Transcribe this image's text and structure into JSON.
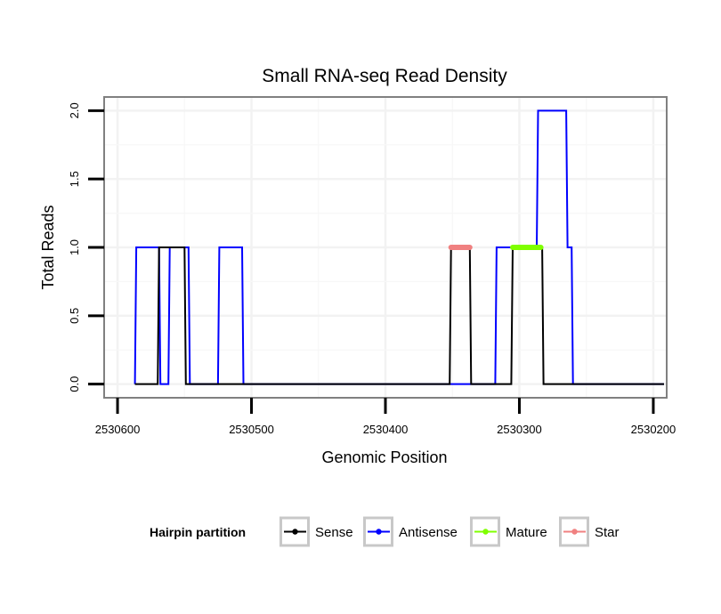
{
  "chart_data": {
    "type": "line",
    "title": "Small RNA-seq Read Density",
    "xlabel": "Genomic Position",
    "ylabel": "Total Reads",
    "xlim": [
      2530610,
      2530190
    ],
    "x_reversed": true,
    "ylim": [
      -0.1,
      2.1
    ],
    "x_ticks": [
      2530600,
      2530500,
      2530400,
      2530300,
      2530200
    ],
    "x_tick_labels": [
      "2530600",
      "2530500",
      "2530400",
      "2530300",
      "2530200"
    ],
    "y_ticks": [
      0.0,
      0.5,
      1.0,
      1.5,
      2.0
    ],
    "y_tick_labels": [
      "0.0",
      "0.5",
      "1.0",
      "1.5",
      "2.0"
    ],
    "grid": true,
    "legend": {
      "title": "Hairpin partition",
      "placement": "bottom",
      "entries": [
        {
          "name": "Sense",
          "color": "#000000"
        },
        {
          "name": "Antisense",
          "color": "#0000FF"
        },
        {
          "name": "Mature",
          "color": "#7FFF00"
        },
        {
          "name": "Star",
          "color": "#F08080"
        }
      ]
    },
    "series": [
      {
        "name": "Antisense",
        "color": "#0000FF",
        "points": [
          [
            2530587,
            0
          ],
          [
            2530586,
            1
          ],
          [
            2530569,
            1
          ],
          [
            2530568,
            0
          ],
          [
            2530562,
            0
          ],
          [
            2530561,
            1
          ],
          [
            2530547,
            1
          ],
          [
            2530546,
            0
          ],
          [
            2530525,
            0
          ],
          [
            2530524,
            1
          ],
          [
            2530507,
            1
          ],
          [
            2530506,
            0
          ],
          [
            2530318,
            0
          ],
          [
            2530317,
            1
          ],
          [
            2530287,
            1
          ],
          [
            2530286,
            2
          ],
          [
            2530265,
            2
          ],
          [
            2530264,
            1
          ],
          [
            2530261,
            1
          ],
          [
            2530260,
            0
          ],
          [
            2530192,
            0
          ]
        ]
      },
      {
        "name": "Sense",
        "color": "#000000",
        "points": [
          [
            2530587,
            0
          ],
          [
            2530570,
            0
          ],
          [
            2530569,
            1
          ],
          [
            2530550,
            1
          ],
          [
            2530549,
            0
          ],
          [
            2530352,
            0
          ],
          [
            2530351,
            1
          ],
          [
            2530337,
            1
          ],
          [
            2530336,
            0
          ],
          [
            2530306,
            0
          ],
          [
            2530305,
            1
          ],
          [
            2530283,
            1
          ],
          [
            2530282,
            0
          ],
          [
            2530192,
            0
          ]
        ]
      },
      {
        "name": "Star",
        "color": "#F08080",
        "points": [
          [
            2530351,
            1
          ],
          [
            2530337,
            1
          ]
        ]
      },
      {
        "name": "Mature",
        "color": "#7FFF00",
        "points": [
          [
            2530305,
            1
          ],
          [
            2530284,
            1
          ]
        ]
      }
    ]
  }
}
